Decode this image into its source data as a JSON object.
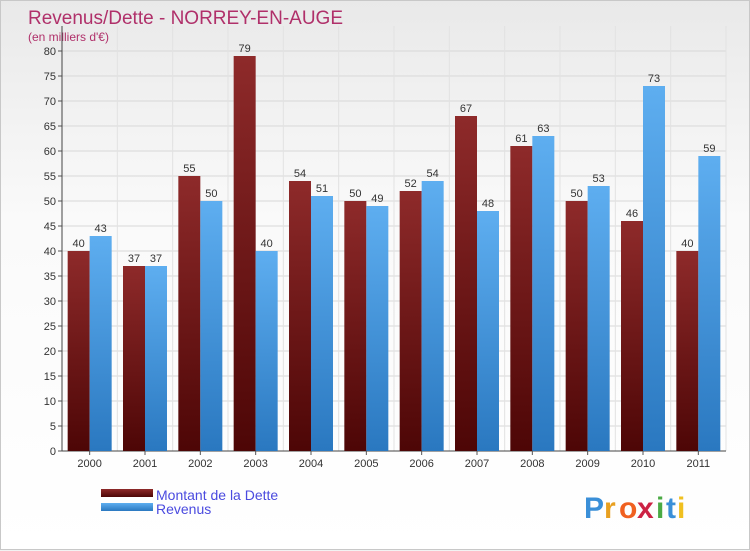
{
  "chart_data": {
    "type": "bar",
    "title": "Revenus/Dette - NORREY-EN-AUGE",
    "subtitle": "(en milliers d'€)",
    "categories": [
      "2000",
      "2001",
      "2002",
      "2003",
      "2004",
      "2005",
      "2006",
      "2007",
      "2008",
      "2009",
      "2010",
      "2011"
    ],
    "series": [
      {
        "name": "Montant de la Dette",
        "color": "#7a1c1c",
        "values": [
          40,
          37,
          55,
          79,
          54,
          50,
          52,
          67,
          61,
          50,
          46,
          40
        ]
      },
      {
        "name": "Revenus",
        "color": "#4a9fe0",
        "values": [
          43,
          37,
          50,
          40,
          51,
          49,
          54,
          48,
          63,
          53,
          73,
          59
        ]
      }
    ],
    "ylim": [
      0,
      85
    ],
    "yticks": [
      0,
      5,
      10,
      15,
      20,
      25,
      30,
      35,
      40,
      45,
      50,
      55,
      60,
      65,
      70,
      75,
      80
    ],
    "grid": true,
    "legend_position": "bottom-left"
  },
  "logo": {
    "text": "Proxiti",
    "letters": [
      "P",
      "r",
      "o",
      "x",
      "i",
      "t",
      "i"
    ],
    "colors": [
      "#3a8fd8",
      "#e8a020",
      "#f06020",
      "#cc2244",
      "#4aaa44",
      "#3a8fd8",
      "#f0c020"
    ]
  }
}
